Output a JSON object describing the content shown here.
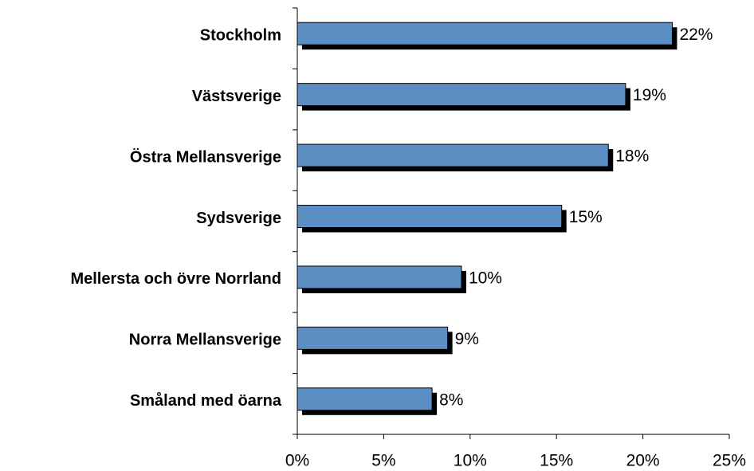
{
  "chart_data": {
    "type": "bar",
    "orientation": "horizontal",
    "categories": [
      "Stockholm",
      "Västsverige",
      "Östra Mellansverige",
      "Sydsverige",
      "Mellersta och övre Norrland",
      "Norra Mellansverige",
      "Småland med öarna"
    ],
    "values": [
      21.7,
      19.0,
      18.0,
      15.3,
      9.5,
      8.7,
      7.8
    ],
    "value_labels": [
      "22%",
      "19%",
      "18%",
      "15%",
      "10%",
      "9%",
      "8%"
    ],
    "color": "#5b8fc3",
    "xlim": [
      0,
      25
    ],
    "xticks": [
      {
        "value": 0,
        "label": "0%"
      },
      {
        "value": 5,
        "label": "5%"
      },
      {
        "value": 10,
        "label": "10%"
      },
      {
        "value": 15,
        "label": "15%"
      },
      {
        "value": 20,
        "label": "20%"
      },
      {
        "value": 25,
        "label": "25%"
      }
    ]
  }
}
